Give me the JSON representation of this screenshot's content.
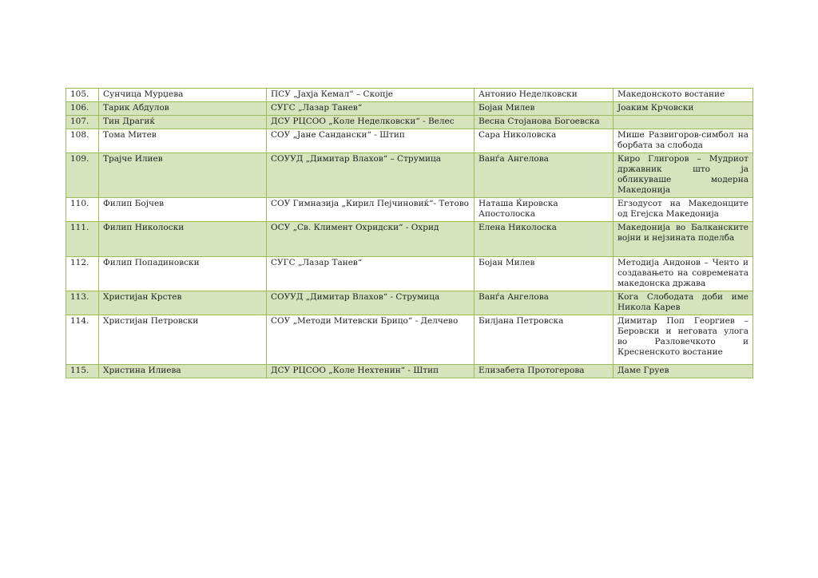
{
  "page": {
    "background_color": "#ffffff"
  },
  "table": {
    "border_color": "#9BBB59",
    "band_color": "#D6E3BC",
    "text_color": "#1f1f1f",
    "rows": [
      {
        "num": "105.",
        "name": "Сунчица Мурџева",
        "school": "ПСУ „Јахја Кемал“ – Скопје",
        "mentor": "Антонио Неделковски",
        "topic": "Македонското востание",
        "shaded": false
      },
      {
        "num": "106.",
        "name": "Тарик Абдулов",
        "school": "СУГС „Лазар Танев“",
        "mentor": "Бојан Милев",
        "topic": "Јоаким Крчовски",
        "shaded": true
      },
      {
        "num": "107.",
        "name": "Тин Драгиќ",
        "school": "ДСУ РЦСОО „Коле Неделковски“ - Велес",
        "mentor": "Весна Стојанова Богоевска",
        "topic": "",
        "shaded": true
      },
      {
        "num": "108.",
        "name": "Тома Митев",
        "school": "СОУ „Јане Сандански“ - Штип",
        "mentor": "Сара Николовска",
        "topic": "Мише Развигоров-симбол на борбата за слобода",
        "shaded": false
      },
      {
        "num": "109.",
        "name": "Трајче Илиев",
        "school": "СОУУД „Димитар Влахов“ – Струмица",
        "mentor": "Ванѓа Ангелова",
        "topic": "Киро Глигоров – Мудриот државник што ја обликуваше модерна Македонија",
        "shaded": true
      },
      {
        "num": "110.",
        "name": "Филип Бојчев",
        "school": "СОУ Гимназија „Кирил Пејчиновиќ“- Тетово",
        "mentor": "Наташа Ќировска Апостолоска",
        "topic": "Егзодусот на Македонците од Егејска Македонија",
        "shaded": false
      },
      {
        "num": "111.",
        "name": "Филип Николоски",
        "school": "ОСУ „Св. Климент Охридски“ - Охрид",
        "mentor": "Елена Николоска",
        "topic": "Македонија во Балканските војни и нејзината поделба",
        "shaded": true
      },
      {
        "num": "112.",
        "name": "Филип Попадиновски",
        "school": "СУГС „Лазар Танев“",
        "mentor": "Бојан Милев",
        "topic": "Методија Андонов – Ченто и создавањето на современата македонска држава",
        "shaded": false
      },
      {
        "num": "113.",
        "name": "Христијан Крстев",
        "school": "СОУУД „Димитар Влахов“ - Струмица",
        "mentor": "Ванѓа Ангелова",
        "topic": "Кога Слободата доби име Никола Карев",
        "shaded": true
      },
      {
        "num": "114.",
        "name": "Христијан Петровски",
        "school": "СОУ „Методи Митевски Брицо“ - Делчево",
        "mentor": "Билјана Петровска",
        "topic": "Димитар Поп Георгиев – Беровски и неговата улога во Разловечкото и Кресненското востание",
        "shaded": false
      },
      {
        "num": "115.",
        "name": "Христина Илиева",
        "school": "ДСУ РЦСОО „Коле Нехтенин“ - Штип",
        "mentor": "Елизабета Протогерова",
        "topic": "Даме Груев",
        "shaded": true
      }
    ]
  }
}
